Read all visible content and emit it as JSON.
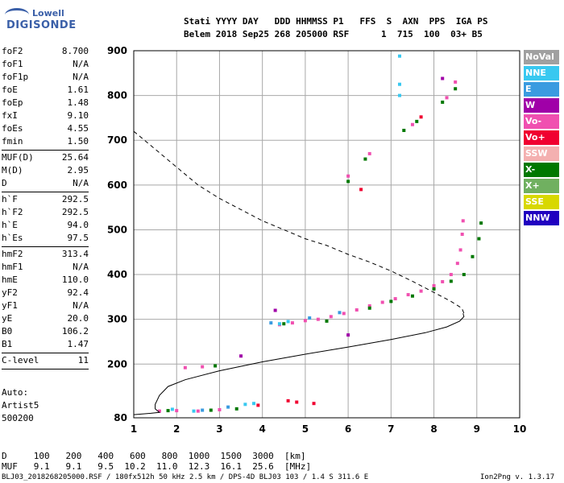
{
  "logo": {
    "line1": "Lowell",
    "line2": "DIGISONDE"
  },
  "header": {
    "labels": "Stati YYYY DAY   DDD HHMMSS P1   FFS  S  AXN  PPS  IGA PS",
    "values": "Belem 2018 Sep25 268 205000 RSF      1  715  100  03+ B5"
  },
  "params": [
    {
      "name": "foF2",
      "value": "8.700"
    },
    {
      "name": "foF1",
      "value": "N/A"
    },
    {
      "name": "foF1p",
      "value": "N/A"
    },
    {
      "name": "foE",
      "value": "1.61"
    },
    {
      "name": "foEp",
      "value": "1.48"
    },
    {
      "name": "fxI",
      "value": "9.10"
    },
    {
      "name": "foEs",
      "value": "4.55"
    },
    {
      "name": "fmin",
      "value": "1.50"
    },
    {
      "sep": true
    },
    {
      "name": "MUF(D)",
      "value": "25.64"
    },
    {
      "name": "M(D)",
      "value": "2.95"
    },
    {
      "name": "D",
      "value": "N/A"
    },
    {
      "sep": true
    },
    {
      "name": "h`F",
      "value": "292.5"
    },
    {
      "name": "h`F2",
      "value": "292.5"
    },
    {
      "name": "h`E",
      "value": "94.0"
    },
    {
      "name": "h`Es",
      "value": "97.5"
    },
    {
      "sep": true
    },
    {
      "name": "hmF2",
      "value": "313.4"
    },
    {
      "name": "hmF1",
      "value": "N/A"
    },
    {
      "name": "hmE",
      "value": "110.0"
    },
    {
      "name": "yF2",
      "value": "92.4"
    },
    {
      "name": "yF1",
      "value": "N/A"
    },
    {
      "name": "yE",
      "value": "20.0"
    },
    {
      "name": "B0",
      "value": "106.2"
    },
    {
      "name": "B1",
      "value": "1.47"
    },
    {
      "sep": true
    },
    {
      "name": "C-level",
      "value": "11"
    },
    {
      "sep": true
    }
  ],
  "auto": {
    "line1": "Auto:",
    "line2": "Artist5",
    "line3": "500200"
  },
  "legend": [
    {
      "label": "NoVal",
      "color": "#a0a0a0"
    },
    {
      "label": "NNE",
      "color": "#38c8f0"
    },
    {
      "label": "E",
      "color": "#3a9be0"
    },
    {
      "label": "W",
      "color": "#a000a8"
    },
    {
      "label": "Vo-",
      "color": "#f050b0"
    },
    {
      "label": "Vo+",
      "color": "#f00030"
    },
    {
      "label": "SSW",
      "color": "#f4b0b0"
    },
    {
      "label": "X-",
      "color": "#007800"
    },
    {
      "label": "X+",
      "color": "#70b060"
    },
    {
      "label": "SSE",
      "color": "#d8d800"
    },
    {
      "label": "NNW",
      "color": "#2000c0"
    }
  ],
  "chart_data": {
    "type": "scatter",
    "xlim": [
      1,
      10
    ],
    "ylim": [
      80,
      900
    ],
    "x_ticks": [
      1,
      2,
      3,
      4,
      5,
      6,
      7,
      8,
      9,
      10
    ],
    "y_ticks": [
      80,
      200,
      300,
      400,
      500,
      600,
      700,
      800,
      900
    ],
    "grid": true,
    "series": [
      {
        "name": "Vo-",
        "color": "#f050b0",
        "points": [
          [
            4.4,
            288
          ],
          [
            4.7,
            292
          ],
          [
            5.0,
            297
          ],
          [
            5.3,
            300
          ],
          [
            5.6,
            306
          ],
          [
            5.9,
            313
          ],
          [
            6.2,
            321
          ],
          [
            6.5,
            330
          ],
          [
            6.8,
            338
          ],
          [
            7.1,
            346
          ],
          [
            7.4,
            355
          ],
          [
            7.7,
            363
          ],
          [
            8.0,
            375
          ],
          [
            8.2,
            384
          ],
          [
            8.4,
            400
          ],
          [
            8.55,
            425
          ],
          [
            8.62,
            455
          ],
          [
            8.66,
            490
          ],
          [
            8.68,
            520
          ],
          [
            6.0,
            620
          ],
          [
            6.5,
            670
          ],
          [
            7.5,
            735
          ],
          [
            8.3,
            795
          ],
          [
            8.5,
            830
          ],
          [
            1.6,
            95
          ],
          [
            2.0,
            96
          ],
          [
            2.5,
            95
          ],
          [
            3.0,
            98
          ],
          [
            2.2,
            192
          ],
          [
            2.6,
            194
          ]
        ]
      },
      {
        "name": "X-",
        "color": "#007800",
        "points": [
          [
            6.0,
            608
          ],
          [
            6.4,
            658
          ],
          [
            7.3,
            722
          ],
          [
            7.6,
            742
          ],
          [
            8.2,
            785
          ],
          [
            8.5,
            815
          ],
          [
            4.5,
            290
          ],
          [
            5.5,
            296
          ],
          [
            6.5,
            325
          ],
          [
            7.0,
            340
          ],
          [
            7.5,
            352
          ],
          [
            8.0,
            368
          ],
          [
            8.4,
            385
          ],
          [
            8.7,
            400
          ],
          [
            8.9,
            440
          ],
          [
            9.05,
            480
          ],
          [
            9.1,
            515
          ],
          [
            1.8,
            96
          ],
          [
            2.8,
            97
          ],
          [
            3.4,
            100
          ],
          [
            2.9,
            196
          ]
        ]
      },
      {
        "name": "NNE",
        "color": "#38c8f0",
        "points": [
          [
            7.2,
            888
          ],
          [
            7.2,
            825
          ],
          [
            7.2,
            800
          ],
          [
            4.4,
            290
          ],
          [
            4.6,
            295
          ],
          [
            3.6,
            110
          ],
          [
            3.8,
            112
          ],
          [
            2.4,
            95
          ],
          [
            1.9,
            99
          ]
        ]
      },
      {
        "name": "Vo+",
        "color": "#f00030",
        "points": [
          [
            4.6,
            118
          ],
          [
            4.8,
            115
          ],
          [
            5.2,
            112
          ],
          [
            6.3,
            590
          ],
          [
            7.7,
            752
          ],
          [
            3.9,
            108
          ]
        ]
      },
      {
        "name": "W",
        "color": "#a000a8",
        "points": [
          [
            4.3,
            320
          ],
          [
            6.0,
            265
          ],
          [
            3.5,
            218
          ],
          [
            8.2,
            838
          ]
        ]
      },
      {
        "name": "E",
        "color": "#3a9be0",
        "points": [
          [
            4.2,
            292
          ],
          [
            5.1,
            303
          ],
          [
            5.8,
            315
          ],
          [
            3.2,
            104
          ],
          [
            2.6,
            97
          ]
        ]
      }
    ],
    "profile_solid": [
      [
        1.0,
        87
      ],
      [
        1.4,
        90
      ],
      [
        1.6,
        92
      ],
      [
        1.55,
        96
      ],
      [
        1.5,
        100
      ],
      [
        1.5,
        110
      ],
      [
        1.6,
        130
      ],
      [
        1.8,
        150
      ],
      [
        2.2,
        165
      ],
      [
        3.0,
        185
      ],
      [
        4.0,
        205
      ],
      [
        5.0,
        222
      ],
      [
        6.0,
        238
      ],
      [
        7.0,
        255
      ],
      [
        7.8,
        270
      ],
      [
        8.3,
        283
      ],
      [
        8.6,
        296
      ],
      [
        8.7,
        306
      ],
      [
        8.68,
        313.4
      ]
    ],
    "profile_dashed": [
      [
        1.0,
        720
      ],
      [
        1.5,
        680
      ],
      [
        2.0,
        640
      ],
      [
        2.5,
        600
      ],
      [
        3.0,
        570
      ],
      [
        3.5,
        545
      ],
      [
        4.0,
        520
      ],
      [
        4.5,
        500
      ],
      [
        5.0,
        480
      ],
      [
        5.5,
        465
      ],
      [
        6.0,
        445
      ],
      [
        6.5,
        428
      ],
      [
        7.0,
        408
      ],
      [
        7.5,
        385
      ],
      [
        8.0,
        360
      ],
      [
        8.4,
        340
      ],
      [
        8.65,
        325
      ],
      [
        8.7,
        313.4
      ]
    ]
  },
  "bottom": {
    "d_line": "D     100   200   400   600   800  1000  1500  3000  [km]",
    "muf_line": "MUF   9.1   9.1   9.5  10.2  11.0  12.3  16.1  25.6  [MHz]",
    "footer_left": "BLJ03_2018268205000.RSF / 180fx512h 50 kHz 2.5 km / DPS-4D BLJ03 103 / 1.4 S 311.6 E",
    "footer_right": "Ion2Png v. 1.3.17"
  }
}
